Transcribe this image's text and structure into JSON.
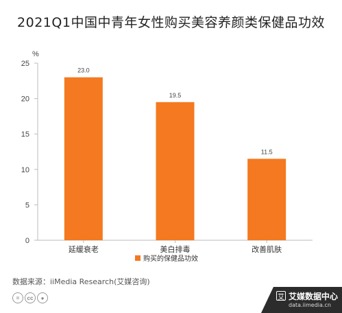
{
  "chart_data": {
    "type": "bar",
    "title": "2021Q1中国中青年女性购买美容养颜类保健品功效",
    "ylabel": "%",
    "xlabel": "",
    "ylim": [
      0,
      25
    ],
    "yticks": [
      "0",
      "5",
      "10",
      "15",
      "20",
      "25"
    ],
    "categories": [
      "延缓衰老",
      "美白排毒",
      "改善肌肤"
    ],
    "values": [
      23.0,
      19.5,
      11.5
    ],
    "value_labels": [
      "23.0",
      "19.5",
      "11.5"
    ],
    "series": [
      {
        "name": "购买的保健品功效",
        "values": [
          23.0,
          19.5,
          11.5
        ]
      }
    ],
    "bar_color": "#f47920",
    "grid": false,
    "legend_position": "bottom"
  },
  "source": "数据来源：iiMedia Research(艾媒咨询)",
  "license_icons": [
    "cc",
    "by"
  ],
  "brand": {
    "logo": "艾",
    "name": "艾媒数据中心",
    "url": "data.iimedia.cn"
  }
}
